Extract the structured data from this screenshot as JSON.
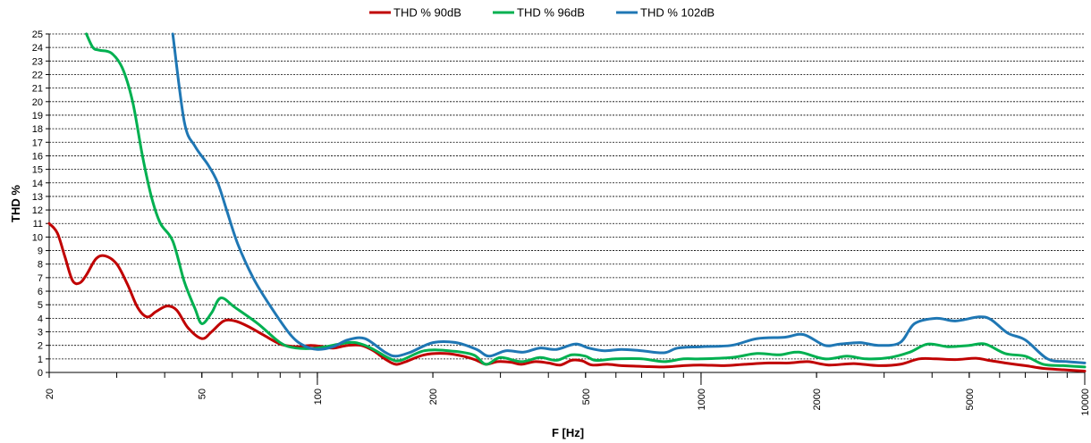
{
  "chart_data": {
    "type": "line",
    "xlabel": "F [Hz]",
    "ylabel": "THD %",
    "xscale": "log",
    "xlim": [
      20,
      10000
    ],
    "ylim": [
      0,
      25
    ],
    "grid": "horizontal dashed",
    "legend": "top",
    "x_tick_labels": [
      "20",
      "50",
      "100",
      "200",
      "500",
      "1000",
      "2000",
      "5000",
      "10000"
    ],
    "y_tick_labels": [
      "0",
      "1",
      "2",
      "3",
      "4",
      "5",
      "6",
      "7",
      "8",
      "9",
      "10",
      "11",
      "12",
      "13",
      "14",
      "15",
      "16",
      "17",
      "18",
      "19",
      "20",
      "21",
      "22",
      "23",
      "24",
      "25"
    ],
    "series": [
      {
        "name": "THD % 90dB",
        "color": "#C00000",
        "points": [
          [
            20,
            11
          ],
          [
            21,
            10.3
          ],
          [
            22,
            8.5
          ],
          [
            23,
            6.8
          ],
          [
            24,
            6.6
          ],
          [
            25,
            7.2
          ],
          [
            26.5,
            8.4
          ],
          [
            28,
            8.6
          ],
          [
            30,
            8
          ],
          [
            32,
            6.5
          ],
          [
            34,
            4.8
          ],
          [
            36,
            4.1
          ],
          [
            38,
            4.5
          ],
          [
            40.5,
            4.9
          ],
          [
            43,
            4.6
          ],
          [
            46,
            3.3
          ],
          [
            50,
            2.5
          ],
          [
            53,
            3
          ],
          [
            57,
            3.8
          ],
          [
            61,
            3.8
          ],
          [
            66,
            3.4
          ],
          [
            72,
            2.8
          ],
          [
            80,
            2.1
          ],
          [
            88,
            1.9
          ],
          [
            96,
            2
          ],
          [
            104,
            1.9
          ],
          [
            110,
            1.8
          ],
          [
            120,
            2
          ],
          [
            130,
            2
          ],
          [
            140,
            1.6
          ],
          [
            150,
            1
          ],
          [
            160,
            0.6
          ],
          [
            170,
            0.8
          ],
          [
            190,
            1.3
          ],
          [
            215,
            1.4
          ],
          [
            240,
            1.2
          ],
          [
            260,
            0.9
          ],
          [
            275,
            0.6
          ],
          [
            295,
            0.8
          ],
          [
            320,
            0.75
          ],
          [
            340,
            0.6
          ],
          [
            370,
            0.8
          ],
          [
            400,
            0.7
          ],
          [
            430,
            0.55
          ],
          [
            460,
            0.9
          ],
          [
            490,
            0.85
          ],
          [
            520,
            0.55
          ],
          [
            570,
            0.6
          ],
          [
            620,
            0.5
          ],
          [
            700,
            0.45
          ],
          [
            800,
            0.4
          ],
          [
            900,
            0.5
          ],
          [
            1000,
            0.55
          ],
          [
            1150,
            0.5
          ],
          [
            1300,
            0.6
          ],
          [
            1500,
            0.7
          ],
          [
            1700,
            0.7
          ],
          [
            1900,
            0.8
          ],
          [
            2150,
            0.55
          ],
          [
            2500,
            0.65
          ],
          [
            2900,
            0.5
          ],
          [
            3300,
            0.6
          ],
          [
            3700,
            1
          ],
          [
            4100,
            1
          ],
          [
            4600,
            0.95
          ],
          [
            5200,
            1.05
          ],
          [
            5600,
            0.9
          ],
          [
            6200,
            0.7
          ],
          [
            7000,
            0.5
          ],
          [
            7800,
            0.3
          ],
          [
            8800,
            0.2
          ],
          [
            10000,
            0.1
          ]
        ]
      },
      {
        "name": "THD % 96dB",
        "color": "#00B050",
        "points": [
          [
            25,
            25
          ],
          [
            26,
            24
          ],
          [
            27,
            23.8
          ],
          [
            29,
            23.6
          ],
          [
            31,
            22.5
          ],
          [
            33,
            20
          ],
          [
            35,
            16
          ],
          [
            37,
            12.9
          ],
          [
            39,
            11
          ],
          [
            42,
            9.7
          ],
          [
            45,
            6.7
          ],
          [
            48,
            4.7
          ],
          [
            50,
            3.6
          ],
          [
            53,
            4.4
          ],
          [
            56,
            5.5
          ],
          [
            61,
            4.8
          ],
          [
            70,
            3.6
          ],
          [
            80,
            2.2
          ],
          [
            88,
            1.8
          ],
          [
            100,
            1.8
          ],
          [
            120,
            2.2
          ],
          [
            130,
            2.1
          ],
          [
            140,
            1.7
          ],
          [
            155,
            1
          ],
          [
            165,
            0.9
          ],
          [
            190,
            1.6
          ],
          [
            220,
            1.6
          ],
          [
            255,
            1.3
          ],
          [
            275,
            0.6
          ],
          [
            300,
            1.1
          ],
          [
            340,
            0.8
          ],
          [
            380,
            1.1
          ],
          [
            420,
            0.9
          ],
          [
            460,
            1.3
          ],
          [
            500,
            1.2
          ],
          [
            530,
            0.9
          ],
          [
            600,
            1
          ],
          [
            700,
            1
          ],
          [
            800,
            0.8
          ],
          [
            900,
            1
          ],
          [
            1000,
            1
          ],
          [
            1200,
            1.1
          ],
          [
            1400,
            1.4
          ],
          [
            1600,
            1.3
          ],
          [
            1800,
            1.5
          ],
          [
            2100,
            1
          ],
          [
            2400,
            1.2
          ],
          [
            2700,
            1
          ],
          [
            3100,
            1.1
          ],
          [
            3500,
            1.5
          ],
          [
            3900,
            2.1
          ],
          [
            4400,
            1.9
          ],
          [
            5000,
            2
          ],
          [
            5500,
            2.1
          ],
          [
            6200,
            1.4
          ],
          [
            7000,
            1.2
          ],
          [
            7800,
            0.6
          ],
          [
            8800,
            0.5
          ],
          [
            10000,
            0.4
          ]
        ]
      },
      {
        "name": "THD % 102dB",
        "color": "#1F77B4",
        "points": [
          [
            42,
            25
          ],
          [
            45,
            18.5
          ],
          [
            48,
            16.7
          ],
          [
            52,
            15.3
          ],
          [
            55,
            14
          ],
          [
            58,
            12
          ],
          [
            62,
            9.5
          ],
          [
            68,
            7
          ],
          [
            75,
            5
          ],
          [
            85,
            2.8
          ],
          [
            92,
            2
          ],
          [
            100,
            1.7
          ],
          [
            110,
            1.9
          ],
          [
            120,
            2.4
          ],
          [
            133,
            2.5
          ],
          [
            150,
            1.5
          ],
          [
            160,
            1.2
          ],
          [
            175,
            1.5
          ],
          [
            200,
            2.2
          ],
          [
            230,
            2.2
          ],
          [
            260,
            1.7
          ],
          [
            280,
            1.2
          ],
          [
            310,
            1.6
          ],
          [
            345,
            1.5
          ],
          [
            380,
            1.8
          ],
          [
            420,
            1.7
          ],
          [
            470,
            2.1
          ],
          [
            510,
            1.8
          ],
          [
            560,
            1.6
          ],
          [
            620,
            1.7
          ],
          [
            700,
            1.6
          ],
          [
            800,
            1.45
          ],
          [
            870,
            1.8
          ],
          [
            1000,
            1.9
          ],
          [
            1200,
            2
          ],
          [
            1400,
            2.5
          ],
          [
            1650,
            2.6
          ],
          [
            1850,
            2.8
          ],
          [
            2100,
            2
          ],
          [
            2300,
            2.1
          ],
          [
            2600,
            2.2
          ],
          [
            2900,
            2
          ],
          [
            3300,
            2.2
          ],
          [
            3600,
            3.6
          ],
          [
            4100,
            4
          ],
          [
            4600,
            3.8
          ],
          [
            5300,
            4.1
          ],
          [
            5700,
            3.9
          ],
          [
            6300,
            2.9
          ],
          [
            7000,
            2.4
          ],
          [
            8000,
            1
          ],
          [
            9000,
            0.8
          ],
          [
            10000,
            0.7
          ]
        ]
      }
    ]
  }
}
